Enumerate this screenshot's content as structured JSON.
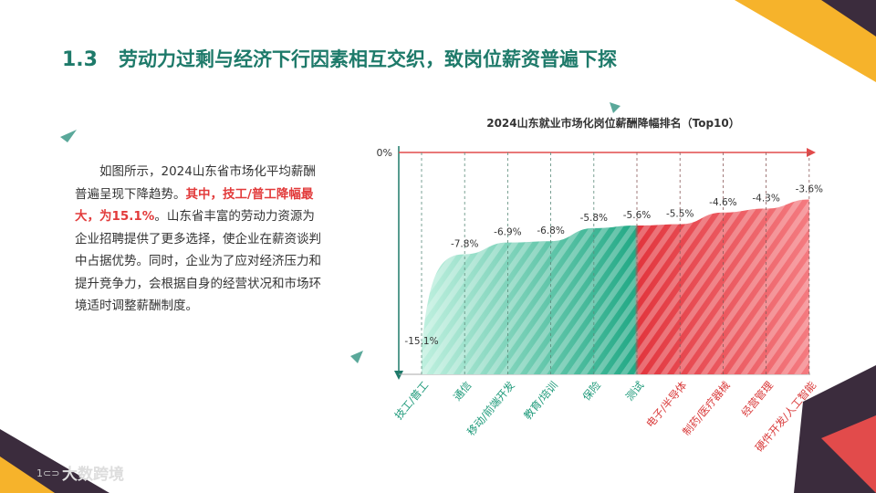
{
  "header": {
    "number": "1.3",
    "title": "劳动力过剩与经济下行因素相互交织，致岗位薪资普遍下探"
  },
  "text": {
    "segments": [
      "如图所示，2024山东省市场化平均薪酬普遍呈现下降趋势。",
      "其中，技工/普工降幅最大，为15.1%",
      "。山东省丰富的劳动力资源为企业招聘提供了更多选择，使企业在薪资谈判中占据优势。同时，企业为了应对经济压力和提升竞争力，会根据自身的经营状况和市场环境适时调整薪酬制度。"
    ]
  },
  "chart_data": {
    "type": "area",
    "title": "2024山东就业市场化岗位薪酬降幅排名（Top10）",
    "categories": [
      "技工/普工",
      "通信",
      "移动/前端开发",
      "教育/培训",
      "保险",
      "测试",
      "电子/半导体",
      "制药/医疗器械",
      "经营管理",
      "硬件开发/人工智能"
    ],
    "values": [
      -15.1,
      -7.8,
      -6.9,
      -6.8,
      -5.8,
      -5.6,
      -5.5,
      -4.6,
      -4.3,
      -3.6
    ],
    "value_labels": [
      "-15.1%",
      "-7.8%",
      "-6.9%",
      "-6.8%",
      "-5.8%",
      "-5.6%",
      "-5.5%",
      "-4.6%",
      "-4.3%",
      "-3.6%"
    ],
    "ylim": [
      0,
      -17
    ],
    "yticks": [
      {
        "value": 0,
        "label": "0%"
      }
    ]
  },
  "logo": {
    "text": "大数跨境"
  }
}
